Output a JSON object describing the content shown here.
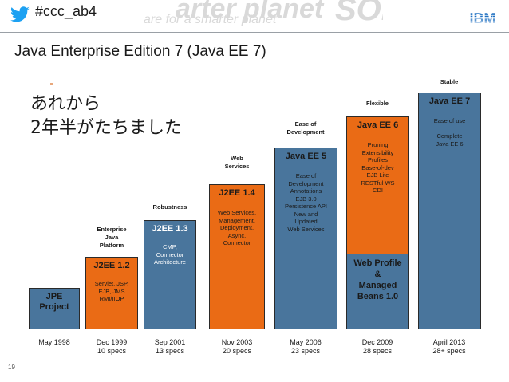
{
  "header": {
    "hashtag": "#ccc_ab4",
    "watermark_main": "arter planet",
    "watermark_sub": "are for a smarter planet",
    "watermark_right": "SOF",
    "logo_text": "IBM"
  },
  "slide": {
    "title": "Java Enterprise Edition 7 (Java EE 7)",
    "jp_line1": "あれから",
    "jp_line2": "2年半がたちました",
    "page_number": "19"
  },
  "colors": {
    "blue": "#49759c",
    "orange": "#ea6b15"
  },
  "releases": [
    {
      "name": "JPE\nProject",
      "title": "JPE Project",
      "theme": "",
      "features": "",
      "date": "May 1998",
      "specs": ""
    },
    {
      "title": "J2EE 1.2",
      "theme": "Enterprise\nJava\nPlatform",
      "features": "Servlet, JSP,\nEJB, JMS\nRMI/IIOP",
      "date": "Dec 1999",
      "specs": "10 specs"
    },
    {
      "title": "J2EE 1.3",
      "theme": "Robustness",
      "features": "CMP,\nConnector\nArchitecture",
      "date": "Sep 2001",
      "specs": "13 specs"
    },
    {
      "title": "J2EE 1.4",
      "theme": "Web\nServices",
      "features": "Web Services,\nManagement,\nDeployment,\nAsync.\nConnector",
      "date": "Nov 2003",
      "specs": "20 specs"
    },
    {
      "title": "Java EE 5",
      "theme": "Ease of\nDevelopment",
      "features": "Ease of\nDevelopment\nAnnotations\nEJB 3.0\nPersistence API\nNew and\nUpdated\nWeb Services",
      "date": "May 2006",
      "specs": "23 specs"
    },
    {
      "title": "Java EE 6",
      "theme": "Flexible",
      "features": "Pruning\nExtensibility\nProfiles\nEase-of-dev\nEJB Lite\nRESTful WS\nCDI",
      "box": "Web Profile\n&\nManaged\nBeans 1.0",
      "date": "Dec 2009",
      "specs": "28 specs"
    },
    {
      "title": "Java EE 7",
      "theme": "Stable",
      "features": "Ease of use\n\nComplete\nJava EE 6",
      "date": "April 2013",
      "specs": "28+ specs"
    }
  ]
}
